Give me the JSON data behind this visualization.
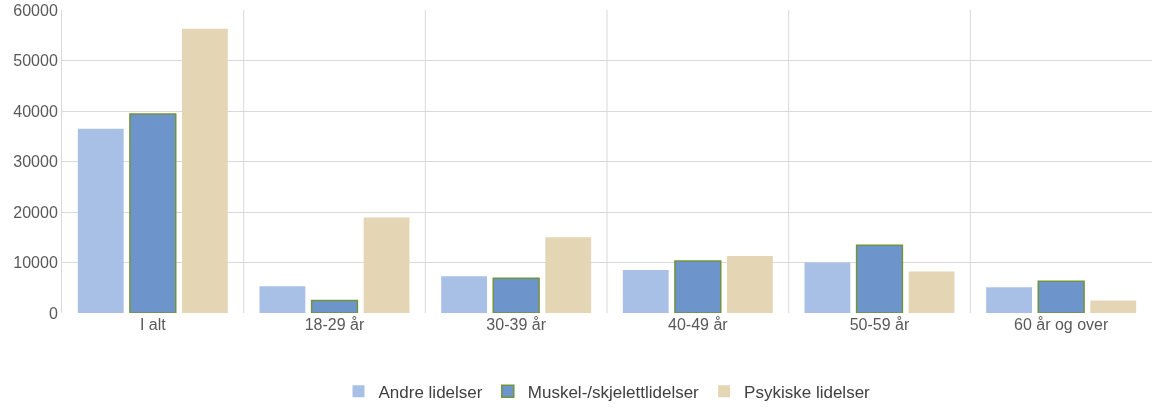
{
  "chart_data": {
    "type": "bar",
    "categories": [
      "I alt",
      "18-29 år",
      "30-39 år",
      "40-49 år",
      "50-59 år",
      "60 år og over"
    ],
    "series": [
      {
        "name": "Andre lidelser",
        "color": "#a9c0e6",
        "values": [
          36500,
          5300,
          7300,
          8500,
          10000,
          5100
        ]
      },
      {
        "name": "Muskel-/skjelettlidelser",
        "color": "#6e95cb",
        "values": [
          39400,
          2500,
          6900,
          10300,
          13400,
          6300
        ]
      },
      {
        "name": "Psykiske lidelser",
        "color": "#e4d6b5",
        "values": [
          56300,
          18900,
          15000,
          11300,
          8200,
          2500
        ]
      }
    ],
    "ylim": [
      0,
      60000
    ],
    "yticks": [
      0,
      10000,
      20000,
      30000,
      40000,
      50000,
      60000
    ],
    "grid": true,
    "legend": "bottom"
  }
}
